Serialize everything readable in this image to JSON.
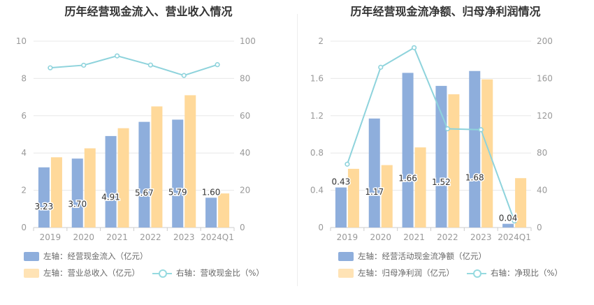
{
  "colors": {
    "bar_primary": "#8eaedc",
    "bar_secondary": "#ffd99a",
    "line": "#8ed3dc",
    "axis_text": "#999999",
    "grid": "#e8e8e8",
    "title_text": "#333333"
  },
  "charts": [
    {
      "title": "历年经营现金流入、营业收入情况",
      "legend": {
        "bar1": "左轴：经营现金流入（亿元）",
        "bar2": "左轴：营业总收入（亿元）",
        "line": "右轴：营收现金比（%）"
      }
    },
    {
      "title": "历年经营现金流净额、归母净利润情况",
      "legend": {
        "bar1": "左轴：经营活动现金流净额（亿元）",
        "bar2": "左轴：归母净利润（亿元）",
        "line": "右轴：净现比（%）"
      }
    }
  ],
  "chart_data": [
    {
      "type": "bar",
      "title": "历年经营现金流入、营业收入情况",
      "categories": [
        "2019",
        "2020",
        "2021",
        "2022",
        "2023",
        "2024Q1"
      ],
      "left_axis": {
        "min": 0,
        "max": 10,
        "ticks": [
          "0",
          "2",
          "4",
          "6",
          "8",
          "10"
        ]
      },
      "right_axis": {
        "min": 0,
        "max": 100,
        "ticks": [
          "0",
          "20",
          "40",
          "60",
          "80",
          "100"
        ]
      },
      "series": [
        {
          "name": "左轴：经营现金流入（亿元）",
          "kind": "bar",
          "axis": "left",
          "values": [
            3.23,
            3.7,
            4.91,
            5.67,
            5.79,
            1.6
          ],
          "labels": [
            "3.23",
            "3.70",
            "4.91",
            "5.67",
            "5.79",
            "1.60"
          ]
        },
        {
          "name": "左轴：营业总收入（亿元）",
          "kind": "bar",
          "axis": "left",
          "values": [
            3.77,
            4.25,
            5.33,
            6.5,
            7.1,
            1.83
          ]
        },
        {
          "name": "右轴：营收现金比（%）",
          "kind": "line",
          "axis": "right",
          "values": [
            85.7,
            87.1,
            92.1,
            87.2,
            81.6,
            87.4
          ]
        }
      ],
      "grid": true,
      "legend_position": "bottom"
    },
    {
      "type": "bar",
      "title": "历年经营现金流净额、归母净利润情况",
      "categories": [
        "2019",
        "2020",
        "2021",
        "2022",
        "2023",
        "2024Q1"
      ],
      "left_axis": {
        "min": 0,
        "max": 2,
        "ticks": [
          "0",
          "0.4",
          "0.8",
          "1.2",
          "1.6",
          "2"
        ]
      },
      "right_axis": {
        "min": 0,
        "max": 200,
        "ticks": [
          "0",
          "40",
          "80",
          "120",
          "160",
          "200"
        ]
      },
      "series": [
        {
          "name": "左轴：经营活动现金流净额（亿元）",
          "kind": "bar",
          "axis": "left",
          "values": [
            0.43,
            1.17,
            1.66,
            1.52,
            1.68,
            0.04
          ],
          "labels": [
            "0.43",
            "1.17",
            "1.66",
            "1.52",
            "1.68",
            "0.04"
          ]
        },
        {
          "name": "左轴：归母净利润（亿元）",
          "kind": "bar",
          "axis": "left",
          "values": [
            0.63,
            0.67,
            0.86,
            1.43,
            1.59,
            0.53
          ]
        },
        {
          "name": "右轴：净现比（%）",
          "kind": "line",
          "axis": "right",
          "values": [
            68,
            172,
            193,
            106,
            105,
            7
          ]
        }
      ],
      "grid": true,
      "legend_position": "bottom"
    }
  ]
}
